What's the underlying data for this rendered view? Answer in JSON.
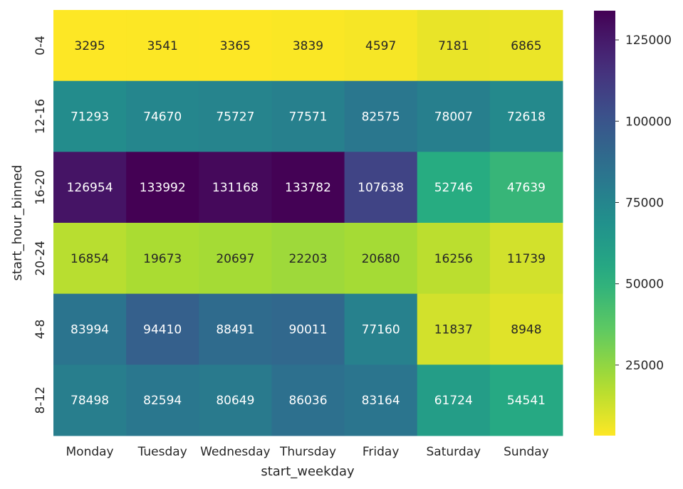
{
  "chart_data": {
    "type": "heatmap",
    "title": "",
    "xlabel": "start_weekday",
    "ylabel": "start_hour_binned",
    "x_categories": [
      "Monday",
      "Tuesday",
      "Wednesday",
      "Thursday",
      "Friday",
      "Saturday",
      "Sunday"
    ],
    "y_categories": [
      "0-4",
      "12-16",
      "16-20",
      "20-24",
      "4-8",
      "8-12"
    ],
    "values": [
      [
        3295,
        3541,
        3365,
        3839,
        4597,
        7181,
        6865
      ],
      [
        71293,
        74670,
        75727,
        77571,
        82575,
        78007,
        72618
      ],
      [
        126954,
        133992,
        131168,
        133782,
        107638,
        52746,
        47639
      ],
      [
        16854,
        19673,
        20697,
        22203,
        20680,
        16256,
        11739
      ],
      [
        83994,
        94410,
        88491,
        90011,
        77160,
        11837,
        8948
      ],
      [
        78498,
        82594,
        80649,
        86036,
        83164,
        61724,
        54541
      ]
    ],
    "colormap": "viridis_r",
    "color_range": [
      3295,
      133992
    ],
    "colorbar_ticks": [
      25000,
      50000,
      75000,
      100000,
      125000
    ],
    "grid": false
  }
}
